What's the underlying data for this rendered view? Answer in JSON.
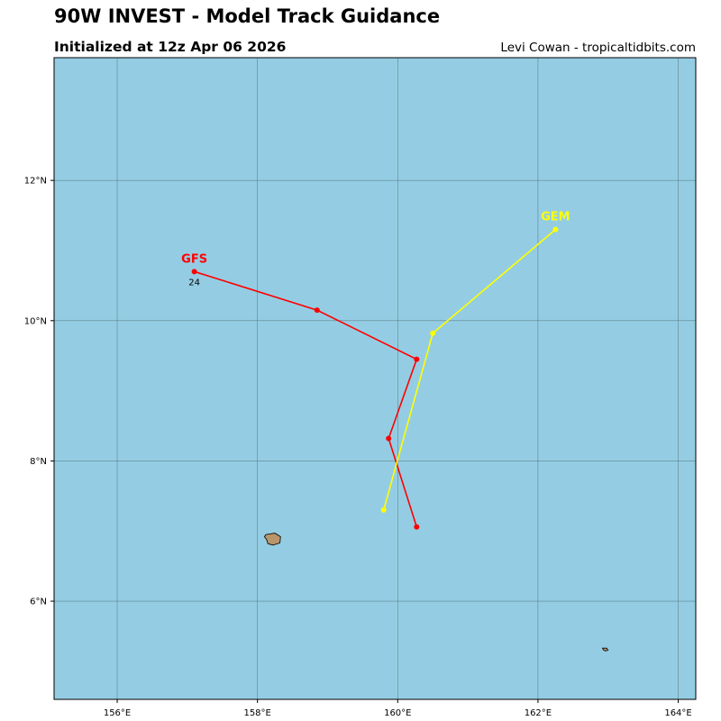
{
  "header": {
    "title": "90W INVEST - Model Track Guidance",
    "subtitle": "Initialized at 12z Apr 06 2026",
    "credit": "Levi Cowan - tropicaltidbits.com"
  },
  "map": {
    "ocean_color": "#94cde3",
    "land_color": "#b8956a",
    "lon_range": [
      155.1,
      164.25
    ],
    "lat_range": [
      4.6,
      13.75
    ],
    "lon_ticks": [
      {
        "value": 156,
        "label": "156°E"
      },
      {
        "value": 158,
        "label": "158°E"
      },
      {
        "value": 160,
        "label": "160°E"
      },
      {
        "value": 162,
        "label": "162°E"
      },
      {
        "value": 164,
        "label": "164°E"
      }
    ],
    "lat_ticks": [
      {
        "value": 6,
        "label": "6°N"
      },
      {
        "value": 8,
        "label": "8°N"
      },
      {
        "value": 10,
        "label": "10°N"
      },
      {
        "value": 12,
        "label": "12°N"
      }
    ],
    "islands": [
      {
        "name": "pohnpei",
        "points": [
          [
            158.12,
            6.95
          ],
          [
            158.25,
            6.97
          ],
          [
            158.33,
            6.92
          ],
          [
            158.32,
            6.83
          ],
          [
            158.22,
            6.8
          ],
          [
            158.15,
            6.82
          ],
          [
            158.13,
            6.88
          ],
          [
            158.1,
            6.92
          ]
        ]
      },
      {
        "name": "kosrae",
        "points": [
          [
            162.92,
            5.33
          ],
          [
            162.98,
            5.33
          ],
          [
            163.0,
            5.3
          ],
          [
            162.96,
            5.29
          ],
          [
            162.93,
            5.31
          ]
        ]
      }
    ]
  },
  "tracks": [
    {
      "model": "GFS",
      "color": "#ff0000",
      "points": [
        {
          "lon": 160.27,
          "lat": 7.06
        },
        {
          "lon": 159.87,
          "lat": 8.32
        },
        {
          "lon": 160.27,
          "lat": 9.45
        },
        {
          "lon": 158.85,
          "lat": 10.15
        },
        {
          "lon": 157.1,
          "lat": 10.7
        }
      ],
      "end_hour_label": "24"
    },
    {
      "model": "GEM",
      "color": "#ffff00",
      "points": [
        {
          "lon": 159.8,
          "lat": 7.3
        },
        {
          "lon": 160.5,
          "lat": 9.82
        },
        {
          "lon": 162.25,
          "lat": 11.3
        }
      ],
      "end_hour_label": ""
    }
  ]
}
